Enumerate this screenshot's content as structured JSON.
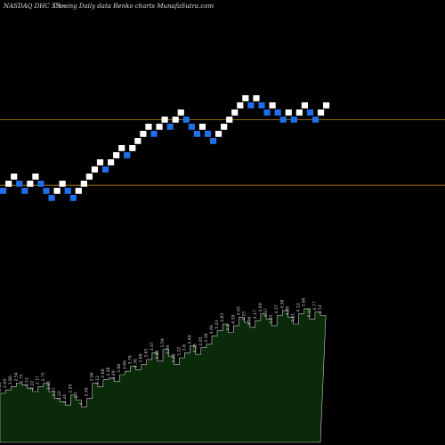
{
  "header": {
    "ticker": "NASDAQ DHC 5%~",
    "description": "Closing Daily data Renko charts MunafaSutra.com"
  },
  "colors": {
    "background": "#000000",
    "brick_up": "#ffffff",
    "brick_down": "#1e6fe8",
    "reference_line": "#b8860b",
    "volume_fill": "#0a2a0a",
    "volume_stroke": "#cccccc"
  },
  "chart_data": {
    "type": "renko",
    "bricks": [
      {
        "dir": "down",
        "level": 0
      },
      {
        "dir": "up",
        "level": 1
      },
      {
        "dir": "up",
        "level": 2
      },
      {
        "dir": "down",
        "level": 1
      },
      {
        "dir": "down",
        "level": 0
      },
      {
        "dir": "up",
        "level": 1
      },
      {
        "dir": "up",
        "level": 2
      },
      {
        "dir": "down",
        "level": 1
      },
      {
        "dir": "down",
        "level": 0
      },
      {
        "dir": "down",
        "level": -1
      },
      {
        "dir": "up",
        "level": 0
      },
      {
        "dir": "up",
        "level": 1
      },
      {
        "dir": "down",
        "level": 0
      },
      {
        "dir": "down",
        "level": -1
      },
      {
        "dir": "up",
        "level": 0
      },
      {
        "dir": "up",
        "level": 1
      },
      {
        "dir": "up",
        "level": 2
      },
      {
        "dir": "up",
        "level": 3
      },
      {
        "dir": "up",
        "level": 4
      },
      {
        "dir": "down",
        "level": 3
      },
      {
        "dir": "up",
        "level": 4
      },
      {
        "dir": "up",
        "level": 5
      },
      {
        "dir": "up",
        "level": 6
      },
      {
        "dir": "down",
        "level": 5
      },
      {
        "dir": "up",
        "level": 6
      },
      {
        "dir": "up",
        "level": 7
      },
      {
        "dir": "up",
        "level": 8
      },
      {
        "dir": "up",
        "level": 9
      },
      {
        "dir": "down",
        "level": 8
      },
      {
        "dir": "up",
        "level": 9
      },
      {
        "dir": "up",
        "level": 10
      },
      {
        "dir": "down",
        "level": 9
      },
      {
        "dir": "up",
        "level": 10
      },
      {
        "dir": "up",
        "level": 11
      },
      {
        "dir": "down",
        "level": 10
      },
      {
        "dir": "down",
        "level": 9
      },
      {
        "dir": "down",
        "level": 8
      },
      {
        "dir": "up",
        "level": 9
      },
      {
        "dir": "down",
        "level": 8
      },
      {
        "dir": "down",
        "level": 7
      },
      {
        "dir": "up",
        "level": 8
      },
      {
        "dir": "up",
        "level": 9
      },
      {
        "dir": "up",
        "level": 10
      },
      {
        "dir": "up",
        "level": 11
      },
      {
        "dir": "up",
        "level": 12
      },
      {
        "dir": "up",
        "level": 13
      },
      {
        "dir": "down",
        "level": 12
      },
      {
        "dir": "up",
        "level": 13
      },
      {
        "dir": "down",
        "level": 12
      },
      {
        "dir": "down",
        "level": 11
      },
      {
        "dir": "up",
        "level": 12
      },
      {
        "dir": "down",
        "level": 11
      },
      {
        "dir": "down",
        "level": 10
      },
      {
        "dir": "up",
        "level": 11
      },
      {
        "dir": "down",
        "level": 10
      },
      {
        "dir": "up",
        "level": 11
      },
      {
        "dir": "up",
        "level": 12
      },
      {
        "dir": "down",
        "level": 11
      },
      {
        "dir": "down",
        "level": 10
      },
      {
        "dir": "up",
        "level": 11
      },
      {
        "dir": "up",
        "level": 12
      }
    ],
    "reference_levels": [
      1.35,
      10.55
    ],
    "level_range": [
      -1,
      13
    ],
    "volume": {
      "values": [
        2.9,
        3.1,
        3.3,
        3.5,
        3.4,
        3.2,
        3.0,
        3.3,
        3.5,
        3.0,
        2.6,
        2.4,
        2.2,
        2.8,
        2.5,
        2.1,
        2.6,
        3.5,
        3.3,
        3.7,
        3.8,
        3.6,
        4.0,
        4.2,
        4.5,
        4.3,
        4.6,
        4.9,
        5.3,
        4.8,
        5.5,
        5.1,
        4.6,
        5.0,
        5.3,
        5.7,
        5.2,
        5.6,
        5.8,
        6.3,
        6.6,
        7.0,
        6.5,
        6.9,
        7.4,
        7.1,
        6.8,
        7.2,
        7.6,
        7.3,
        6.9,
        7.5,
        7.8,
        7.4,
        7.0,
        7.6,
        7.9,
        7.3,
        7.7,
        7.5
      ],
      "labels": [
        "2.48",
        "2.69",
        "2.86",
        "2.54",
        "2.75",
        "2.51",
        "2.22",
        "2.17",
        "2.75",
        "2.65",
        "2.37",
        "2.22",
        "2.34",
        "2.29",
        "2.3",
        "4",
        "2.36",
        "2.96",
        "3.12",
        "2.68",
        "3.28",
        "3.49",
        "3.68",
        "3.86",
        "3.76",
        "3.36",
        "3.88",
        "3.63",
        "3.47",
        "3.88",
        "3.59",
        "3.39",
        "3.56",
        "3.22",
        "3.8",
        "3.49",
        "3.25",
        "4.05",
        "4.38",
        "4.66",
        "5.01",
        "4.83",
        "4.8",
        "4.59",
        "4.05",
        "4.33",
        "3.96",
        "4.17",
        "4.69",
        "4.17",
        "4.65",
        "4.37",
        "4.58",
        "4.99",
        "4.61",
        "4.12",
        "3.66",
        "5.12",
        "4.77",
        "4.52"
      ],
      "max": 10
    }
  }
}
